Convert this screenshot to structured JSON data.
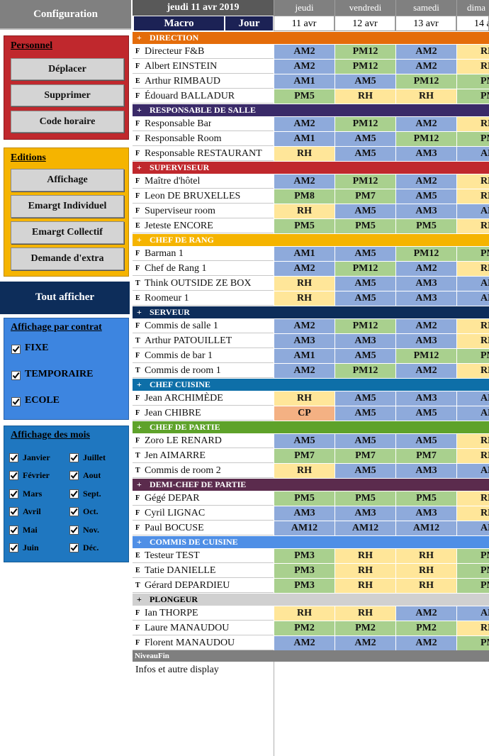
{
  "sidebar": {
    "configuration": "Configuration",
    "personnel": {
      "title": "Personnel",
      "buttons": [
        "Déplacer",
        "Supprimer",
        "Code horaire"
      ]
    },
    "editions": {
      "title": "Editions",
      "buttons": [
        "Affichage",
        "Emargt Individuel",
        "Emargt Collectif",
        "Demande d'extra"
      ]
    },
    "tout_afficher": "Tout afficher",
    "contrat": {
      "title": "Affichage par contrat",
      "options": [
        "FIXE",
        "TEMPORAIRE",
        "ECOLE"
      ]
    },
    "mois": {
      "title": "Affichage des mois",
      "months": [
        "Janvier",
        "Février",
        "Mars",
        "Avril",
        "Mai",
        "Juin",
        "Juillet",
        "Aout",
        "Sept.",
        "Oct.",
        "Nov.",
        "Déc."
      ]
    }
  },
  "grid": {
    "date_title": "jeudi 11 avr 2019",
    "macro": "Macro",
    "jour": "Jour",
    "days": [
      "jeudi",
      "vendredi",
      "samedi",
      "dima"
    ],
    "dates": [
      "11 avr",
      "12 avr",
      "13 avr",
      "14 a"
    ],
    "expand_symbol": "+",
    "shift_colors": {
      "AM": "#8eaadb",
      "PM": "#a9d08e",
      "RH": "#ffe699",
      "CP": "#f4b183"
    },
    "groups": [
      {
        "name": "DIRECTION",
        "color": "#e46c0a",
        "rows": [
          {
            "type": "F",
            "name": "Directeur F&B",
            "shifts": [
              "AM2",
              "PM12",
              "AM2",
              "RH"
            ]
          },
          {
            "type": "F",
            "name": "Albert EINSTEIN",
            "shifts": [
              "AM2",
              "PM12",
              "AM2",
              "RH"
            ]
          },
          {
            "type": "E",
            "name": "Arthur RIMBAUD",
            "shifts": [
              "AM1",
              "AM5",
              "PM12",
              "PM"
            ]
          },
          {
            "type": "F",
            "name": "Édouard BALLADUR",
            "shifts": [
              "PM5",
              "RH",
              "RH",
              "PM"
            ]
          }
        ]
      },
      {
        "name": "RESPONSABLE DE SALLE",
        "color": "#3a2a68",
        "rows": [
          {
            "type": "F",
            "name": "Responsable Bar",
            "shifts": [
              "AM2",
              "PM12",
              "AM2",
              "RH"
            ]
          },
          {
            "type": "F",
            "name": "Responsable Room",
            "shifts": [
              "AM1",
              "AM5",
              "PM12",
              "PM"
            ]
          },
          {
            "type": "F",
            "name": "Responsable RESTAURANT",
            "shifts": [
              "RH",
              "AM5",
              "AM3",
              "AM"
            ]
          }
        ]
      },
      {
        "name": "SUPERVISEUR",
        "color": "#c0282d",
        "rows": [
          {
            "type": "F",
            "name": "Maître d'hôtel",
            "shifts": [
              "AM2",
              "PM12",
              "AM2",
              "RH"
            ]
          },
          {
            "type": "F",
            "name": "Leon DE BRUXELLES",
            "shifts": [
              "PM8",
              "PM7",
              "AM5",
              "RH"
            ]
          },
          {
            "type": "F",
            "name": "Superviseur room",
            "shifts": [
              "RH",
              "AM5",
              "AM3",
              "AM"
            ]
          },
          {
            "type": "E",
            "name": "Jeteste ENCORE",
            "shifts": [
              "PM5",
              "PM5",
              "PM5",
              "RH"
            ]
          }
        ]
      },
      {
        "name": "CHEF DE RANG",
        "color": "#f5b400",
        "rows": [
          {
            "type": "F",
            "name": "Barman 1",
            "shifts": [
              "AM1",
              "AM5",
              "PM12",
              "PM"
            ]
          },
          {
            "type": "F",
            "name": "Chef de Rang 1",
            "shifts": [
              "AM2",
              "PM12",
              "AM2",
              "RH"
            ]
          },
          {
            "type": "T",
            "name": "Think OUTSIDE ZE BOX",
            "shifts": [
              "RH",
              "AM5",
              "AM3",
              "AM"
            ]
          },
          {
            "type": "E",
            "name": "Roomeur 1",
            "shifts": [
              "RH",
              "AM5",
              "AM3",
              "AM"
            ]
          }
        ]
      },
      {
        "name": "SERVEUR",
        "color": "#0d2d5a",
        "rows": [
          {
            "type": "F",
            "name": "Commis de salle 1",
            "shifts": [
              "AM2",
              "PM12",
              "AM2",
              "RH"
            ]
          },
          {
            "type": "T",
            "name": "Arthur PATOUILLET",
            "shifts": [
              "AM3",
              "AM3",
              "AM3",
              "RH"
            ]
          },
          {
            "type": "F",
            "name": "Commis de bar 1",
            "shifts": [
              "AM1",
              "AM5",
              "PM12",
              "PM"
            ]
          },
          {
            "type": "T",
            "name": "Commis de room 1",
            "shifts": [
              "AM2",
              "PM12",
              "AM2",
              "RH"
            ]
          }
        ]
      },
      {
        "name": "CHEF CUISINE",
        "color": "#0e6fa8",
        "rows": [
          {
            "type": "F",
            "name": "Jean ARCHIMÈDE",
            "shifts": [
              "RH",
              "AM5",
              "AM3",
              "AM"
            ]
          },
          {
            "type": "F",
            "name": "Jean CHIBRE",
            "shifts": [
              "CP",
              "AM5",
              "AM5",
              "AM"
            ]
          }
        ]
      },
      {
        "name": "CHEF DE PARTIE",
        "color": "#5ea22a",
        "rows": [
          {
            "type": "F",
            "name": "Zoro LE RENARD",
            "shifts": [
              "AM5",
              "AM5",
              "AM5",
              "RH"
            ]
          },
          {
            "type": "T",
            "name": "Jen AIMARRE",
            "shifts": [
              "PM7",
              "PM7",
              "PM7",
              "RH"
            ]
          },
          {
            "type": "T",
            "name": "Commis de room 2",
            "shifts": [
              "RH",
              "AM5",
              "AM3",
              "AM"
            ]
          }
        ]
      },
      {
        "name": "DEMI-CHEF DE PARTIE",
        "color": "#5b2b4d",
        "rows": [
          {
            "type": "F",
            "name": "Gégé DEPAR",
            "shifts": [
              "PM5",
              "PM5",
              "PM5",
              "RH"
            ]
          },
          {
            "type": "F",
            "name": "Cyril LIGNAC",
            "shifts": [
              "AM3",
              "AM3",
              "AM3",
              "RH"
            ]
          },
          {
            "type": "F",
            "name": "Paul BOCUSE",
            "shifts": [
              "AM12",
              "AM12",
              "AM12",
              "AM"
            ]
          }
        ]
      },
      {
        "name": "COMMIS DE CUISINE",
        "color": "#4f8fe6",
        "rows": [
          {
            "type": "E",
            "name": "Testeur TEST",
            "shifts": [
              "PM3",
              "RH",
              "RH",
              "PM"
            ]
          },
          {
            "type": "E",
            "name": "Tatie DANIELLE",
            "shifts": [
              "PM3",
              "RH",
              "RH",
              "PM"
            ]
          },
          {
            "type": "T",
            "name": "Gérard DEPARDIEU",
            "shifts": [
              "PM3",
              "RH",
              "RH",
              "PM"
            ]
          }
        ]
      },
      {
        "name": "PLONGEUR",
        "color": "#d0d0d0",
        "text_color": "#000000",
        "rows": [
          {
            "type": "F",
            "name": "Ian THORPE",
            "shifts": [
              "RH",
              "RH",
              "AM2",
              "AM"
            ]
          },
          {
            "type": "F",
            "name": "Laure MANAUDOU",
            "shifts": [
              "PM2",
              "PM2",
              "PM2",
              "RH"
            ]
          },
          {
            "type": "F",
            "name": "Florent MANAUDOU",
            "shifts": [
              "AM2",
              "AM2",
              "AM2",
              "PM"
            ]
          }
        ]
      }
    ],
    "footer": "NiveauFin",
    "info": "Infos et autre display"
  }
}
